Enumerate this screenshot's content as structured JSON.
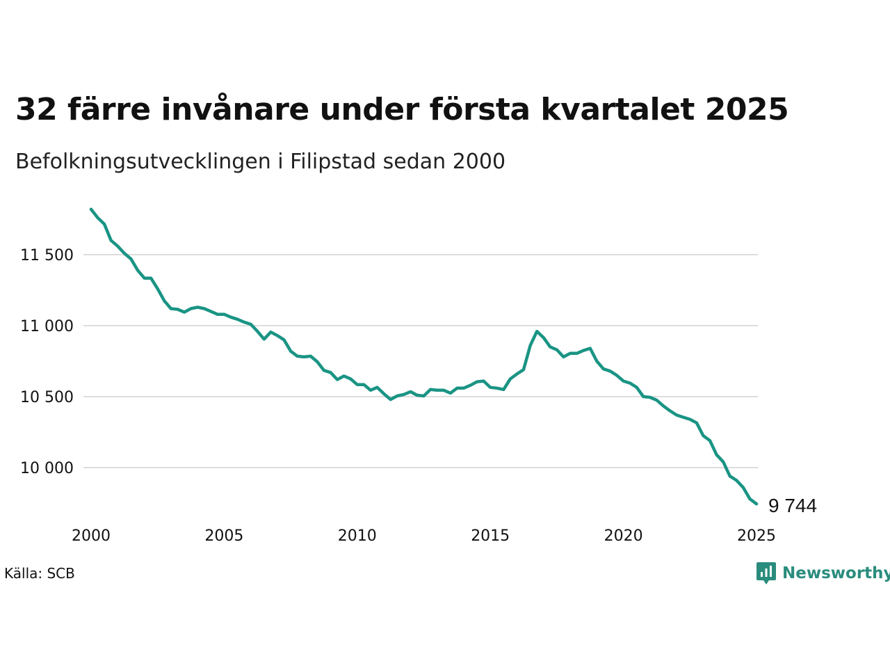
{
  "title": "32 färre invånare under första kvartalet 2025",
  "subtitle": "Befolkningsutvecklingen i Filipstad sedan 2000",
  "source": "Källa: SCB",
  "brand": {
    "name": "Newsworthy",
    "icon": "newsworthy-logo-icon",
    "color": "#2a8c7d"
  },
  "colors": {
    "line": "#1a9484",
    "grid": "#dddddd",
    "text": "#111111"
  },
  "chart_data": {
    "type": "line",
    "title": "32 färre invånare under första kvartalet 2025",
    "subtitle": "Befolkningsutvecklingen i Filipstad sedan 2000",
    "xlabel": "",
    "ylabel": "",
    "x_ticks": [
      "2000",
      "2005",
      "2010",
      "2015",
      "2020",
      "2025"
    ],
    "y_ticks": [
      {
        "value": 10000,
        "label": "10 000"
      },
      {
        "value": 10500,
        "label": "10 500"
      },
      {
        "value": 11000,
        "label": "11 000"
      },
      {
        "value": 11500,
        "label": "11 500"
      }
    ],
    "xlim": [
      2000,
      2025
    ],
    "ylim": [
      9600,
      11900
    ],
    "grid": "horizontal",
    "end_label": "9 744",
    "series": [
      {
        "points": [
          [
            2000.0,
            11820
          ],
          [
            2000.25,
            11760
          ],
          [
            2000.5,
            11715
          ],
          [
            2000.75,
            11600
          ],
          [
            2001.0,
            11560
          ],
          [
            2001.25,
            11510
          ],
          [
            2001.5,
            11470
          ],
          [
            2001.75,
            11390
          ],
          [
            2002.0,
            11335
          ],
          [
            2002.25,
            11335
          ],
          [
            2002.5,
            11260
          ],
          [
            2002.75,
            11175
          ],
          [
            2003.0,
            11120
          ],
          [
            2003.25,
            11115
          ],
          [
            2003.5,
            11095
          ],
          [
            2003.75,
            11120
          ],
          [
            2004.0,
            11130
          ],
          [
            2004.25,
            11120
          ],
          [
            2004.5,
            11100
          ],
          [
            2004.75,
            11080
          ],
          [
            2005.0,
            11080
          ],
          [
            2005.25,
            11060
          ],
          [
            2005.5,
            11045
          ],
          [
            2005.75,
            11025
          ],
          [
            2006.0,
            11010
          ],
          [
            2006.25,
            10960
          ],
          [
            2006.5,
            10905
          ],
          [
            2006.75,
            10955
          ],
          [
            2007.0,
            10930
          ],
          [
            2007.25,
            10900
          ],
          [
            2007.5,
            10820
          ],
          [
            2007.75,
            10785
          ],
          [
            2008.0,
            10780
          ],
          [
            2008.25,
            10785
          ],
          [
            2008.5,
            10745
          ],
          [
            2008.75,
            10685
          ],
          [
            2009.0,
            10670
          ],
          [
            2009.25,
            10620
          ],
          [
            2009.5,
            10645
          ],
          [
            2009.75,
            10625
          ],
          [
            2010.0,
            10585
          ],
          [
            2010.25,
            10585
          ],
          [
            2010.5,
            10545
          ],
          [
            2010.75,
            10565
          ],
          [
            2011.0,
            10520
          ],
          [
            2011.25,
            10480
          ],
          [
            2011.5,
            10505
          ],
          [
            2011.75,
            10515
          ],
          [
            2012.0,
            10535
          ],
          [
            2012.25,
            10510
          ],
          [
            2012.5,
            10505
          ],
          [
            2012.75,
            10550
          ],
          [
            2013.0,
            10545
          ],
          [
            2013.25,
            10545
          ],
          [
            2013.5,
            10525
          ],
          [
            2013.75,
            10560
          ],
          [
            2014.0,
            10560
          ],
          [
            2014.25,
            10580
          ],
          [
            2014.5,
            10605
          ],
          [
            2014.75,
            10610
          ],
          [
            2015.0,
            10565
          ],
          [
            2015.25,
            10560
          ],
          [
            2015.5,
            10550
          ],
          [
            2015.75,
            10625
          ],
          [
            2016.0,
            10660
          ],
          [
            2016.25,
            10690
          ],
          [
            2016.5,
            10860
          ],
          [
            2016.75,
            10960
          ],
          [
            2017.0,
            10915
          ],
          [
            2017.25,
            10850
          ],
          [
            2017.5,
            10830
          ],
          [
            2017.75,
            10780
          ],
          [
            2018.0,
            10805
          ],
          [
            2018.25,
            10805
          ],
          [
            2018.5,
            10825
          ],
          [
            2018.75,
            10840
          ],
          [
            2019.0,
            10750
          ],
          [
            2019.25,
            10695
          ],
          [
            2019.5,
            10680
          ],
          [
            2019.75,
            10650
          ],
          [
            2020.0,
            10610
          ],
          [
            2020.25,
            10595
          ],
          [
            2020.5,
            10565
          ],
          [
            2020.75,
            10500
          ],
          [
            2021.0,
            10495
          ],
          [
            2021.25,
            10475
          ],
          [
            2021.5,
            10435
          ],
          [
            2021.75,
            10400
          ],
          [
            2022.0,
            10370
          ],
          [
            2022.25,
            10355
          ],
          [
            2022.5,
            10340
          ],
          [
            2022.75,
            10315
          ],
          [
            2023.0,
            10225
          ],
          [
            2023.25,
            10190
          ],
          [
            2023.5,
            10090
          ],
          [
            2023.75,
            10040
          ],
          [
            2024.0,
            9940
          ],
          [
            2024.25,
            9910
          ],
          [
            2024.5,
            9860
          ],
          [
            2024.75,
            9780
          ],
          [
            2025.0,
            9744
          ]
        ]
      }
    ]
  }
}
